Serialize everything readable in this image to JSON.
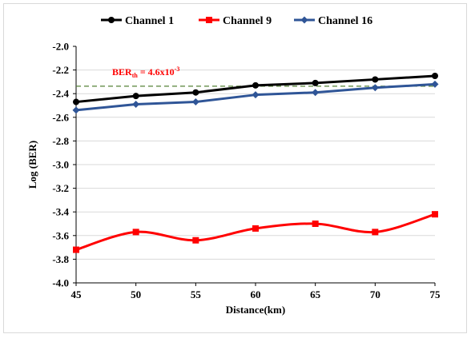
{
  "chart_data": {
    "type": "line",
    "title": "",
    "xlabel": "Distance(km)",
    "ylabel": "Log (BER)",
    "x": [
      45,
      50,
      55,
      60,
      65,
      70,
      75
    ],
    "xlim": [
      45,
      75
    ],
    "ylim": [
      -4.0,
      -2.0
    ],
    "x_ticks": [
      "45",
      "50",
      "55",
      "60",
      "65",
      "70",
      "75"
    ],
    "y_ticks": [
      "-2.0",
      "-2.2",
      "-2.4",
      "-2.6",
      "-2.8",
      "-3.0",
      "-3.2",
      "-3.4",
      "-3.6",
      "-3.8",
      "-4.0"
    ],
    "grid": "horizontal",
    "legend_position": "top",
    "series": [
      {
        "name": "Channel 1",
        "values": [
          -2.47,
          -2.42,
          -2.39,
          -2.33,
          -2.31,
          -2.28,
          -2.25
        ],
        "color": "#000000",
        "marker": "circle",
        "smooth": false
      },
      {
        "name": "Channel 9",
        "values": [
          -3.72,
          -3.57,
          -3.64,
          -3.54,
          -3.5,
          -3.57,
          -3.42
        ],
        "color": "#ff0000",
        "marker": "square",
        "smooth": true
      },
      {
        "name": "Channel 16",
        "values": [
          -2.54,
          -2.49,
          -2.47,
          -2.41,
          -2.39,
          -2.35,
          -2.32
        ],
        "color": "#2f5597",
        "marker": "diamond",
        "smooth": false
      }
    ],
    "threshold": {
      "label_main": "BER",
      "label_sub": "th",
      "label_rest": " = 4.6x10",
      "label_sup": "-3",
      "value": -2.337,
      "color": "#548235",
      "label_color": "#ff0000"
    }
  }
}
